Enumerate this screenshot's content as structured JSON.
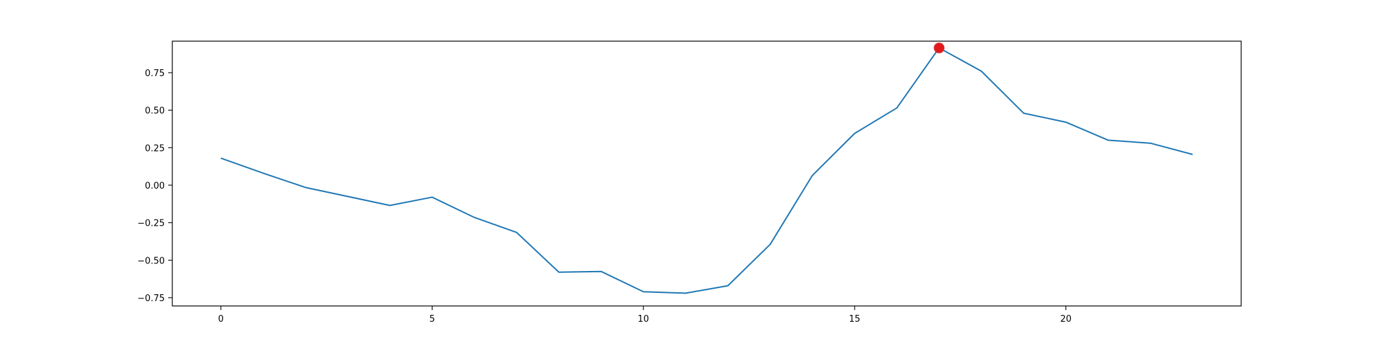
{
  "chart_data": {
    "type": "line",
    "title": "",
    "xlabel": "",
    "ylabel": "",
    "xlim": [
      -1.15,
      24.15
    ],
    "ylim": [
      -0.805,
      0.96
    ],
    "grid": false,
    "x_ticks": [
      0,
      5,
      10,
      15,
      20
    ],
    "y_ticks": [
      -0.75,
      -0.5,
      -0.25,
      0.0,
      0.25,
      0.5,
      0.75
    ],
    "x_tick_labels": [
      "0",
      "5",
      "10",
      "15",
      "20"
    ],
    "y_tick_labels": [
      "−0.75",
      "−0.50",
      "−0.25",
      "0.00",
      "0.25",
      "0.50",
      "0.75"
    ],
    "series": [
      {
        "color": "#1f77b4",
        "x": [
          0,
          1,
          2,
          3,
          4,
          5,
          6,
          7,
          8,
          9,
          10,
          11,
          12,
          13,
          14,
          15,
          16,
          17,
          18,
          19,
          20,
          21,
          22,
          23
        ],
        "values": [
          0.18,
          0.08,
          -0.015,
          -0.075,
          -0.135,
          -0.08,
          -0.215,
          -0.315,
          -0.58,
          -0.575,
          -0.71,
          -0.72,
          -0.67,
          -0.395,
          0.065,
          0.345,
          0.515,
          0.915,
          0.76,
          0.48,
          0.42,
          0.3,
          0.28,
          0.205
        ]
      }
    ],
    "markers": [
      {
        "x": 17,
        "y": 0.915,
        "color": "#e31a1c",
        "edge_color": "#d62728"
      }
    ]
  }
}
